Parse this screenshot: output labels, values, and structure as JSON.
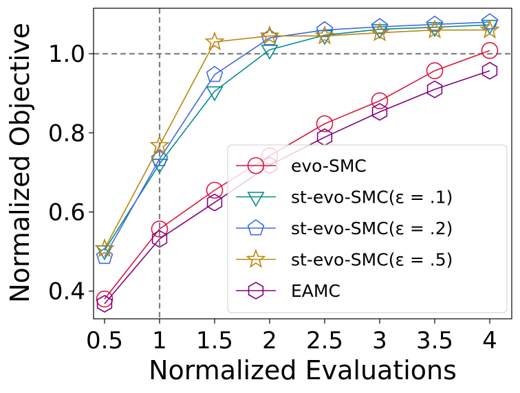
{
  "chart_data": {
    "type": "line",
    "xlabel": "Normalized Evaluations",
    "ylabel": "Normalized Objective",
    "x": [
      0.5,
      1,
      1.5,
      2,
      2.5,
      3,
      3.5,
      4
    ],
    "x_tick_labels": [
      "0.5",
      "1",
      "1.5",
      "2",
      "2.5",
      "3",
      "3.5",
      "4"
    ],
    "y_ticks": [
      0.4,
      0.6,
      0.8,
      1.0
    ],
    "y_tick_labels": [
      "0.4",
      "0.6",
      "0.8",
      "1.0"
    ],
    "xlim": [
      0.4,
      4.2
    ],
    "ylim": [
      0.33,
      1.115
    ],
    "reference_lines": {
      "horizontal_y": 1.0,
      "vertical_x": 1.0,
      "style": "dashed",
      "color": "#808080"
    },
    "legend_position": "lower-right",
    "series": [
      {
        "name": "evo-SMC",
        "color": "#dc143c",
        "marker": "circle",
        "values": [
          0.38,
          0.557,
          0.655,
          0.742,
          0.823,
          0.881,
          0.957,
          1.008
        ]
      },
      {
        "name": "st-evo-SMC(ε = .1)",
        "color": "#008b8b",
        "marker": "triangle-down",
        "values": [
          0.503,
          0.722,
          0.905,
          1.01,
          1.047,
          1.062,
          1.067,
          1.073
        ]
      },
      {
        "name": "st-evo-SMC(ε = .2)",
        "color": "#4169e1",
        "marker": "pentagon",
        "values": [
          0.487,
          0.734,
          0.947,
          1.04,
          1.06,
          1.068,
          1.074,
          1.08
        ]
      },
      {
        "name": "st-evo-SMC(ε = .5)",
        "color": "#b8860b",
        "marker": "star",
        "values": [
          0.507,
          0.768,
          1.03,
          1.045,
          1.045,
          1.053,
          1.06,
          1.06
        ]
      },
      {
        "name": "EAMC",
        "color": "#800080",
        "marker": "hexagon",
        "values": [
          0.368,
          0.532,
          0.624,
          0.718,
          0.789,
          0.853,
          0.91,
          0.957
        ]
      }
    ]
  }
}
